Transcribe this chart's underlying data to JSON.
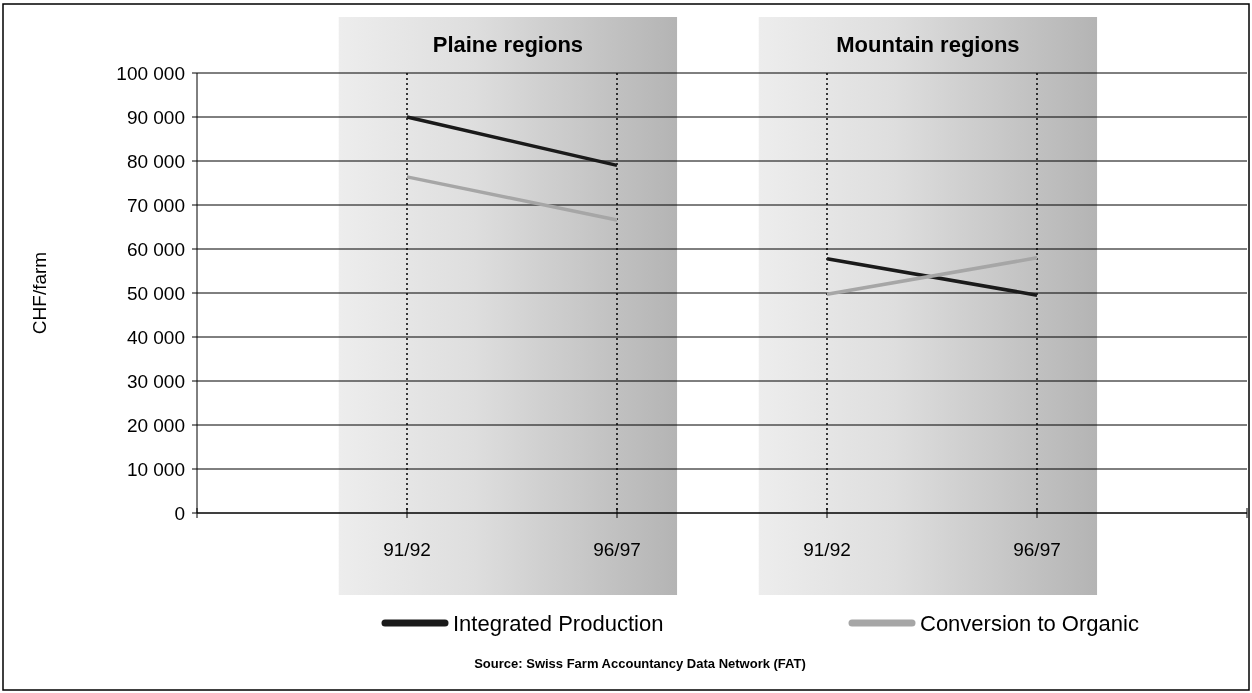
{
  "chart_data": [
    {
      "type": "line",
      "title": "Plaine regions",
      "ylabel": "CHF/farm",
      "categories": [
        "91/92",
        "96/97"
      ],
      "series": [
        {
          "name": "Integrated Production",
          "color": "#1a1a1a",
          "values": [
            90000,
            79000
          ]
        },
        {
          "name": "Conversion to Organic",
          "color": "#a6a6a6",
          "values": [
            76400,
            66600
          ]
        }
      ],
      "ylim": [
        0,
        100000
      ],
      "yticks": [
        {
          "value": 0,
          "label": "0"
        },
        {
          "value": 10000,
          "label": "10 000"
        },
        {
          "value": 20000,
          "label": "20 000"
        },
        {
          "value": 30000,
          "label": "30 000"
        },
        {
          "value": 40000,
          "label": "40 000"
        },
        {
          "value": 50000,
          "label": "50 000"
        },
        {
          "value": 60000,
          "label": "60 000"
        },
        {
          "value": 70000,
          "label": "70 000"
        },
        {
          "value": 80000,
          "label": "80 000"
        },
        {
          "value": 90000,
          "label": "90 000"
        },
        {
          "value": 100000,
          "label": "100 000"
        }
      ],
      "bands": [
        {
          "axis": "x",
          "from": "91/92",
          "to": "96/97",
          "color": "#b4b4b4"
        }
      ],
      "grid": true,
      "legend": "bottom",
      "line_style": "solid",
      "marker": "none",
      "annotations": [
        "Source: Swiss Farm Accountancy Data Network (FAT)"
      ]
    },
    {
      "type": "line",
      "title": "Mountain regions",
      "categories": [
        "91/92",
        "96/97"
      ],
      "series": [
        {
          "color": "#1a1a1a",
          "values": [
            57800,
            49500
          ]
        },
        {
          "color": "#a6a6a6",
          "values": [
            49700,
            58000
          ]
        }
      ],
      "ylim": [
        0,
        100000
      ],
      "yticks": [
        0,
        10000,
        20000,
        30000,
        40000,
        50000,
        60000,
        70000,
        80000,
        90000,
        100000
      ],
      "bands": [
        {
          "axis": "x",
          "from": "91/92",
          "to": "96/97",
          "color": "#b4b4b4"
        }
      ],
      "grid": true,
      "tick_labels": "x",
      "line_style": "solid",
      "marker": "none"
    }
  ]
}
